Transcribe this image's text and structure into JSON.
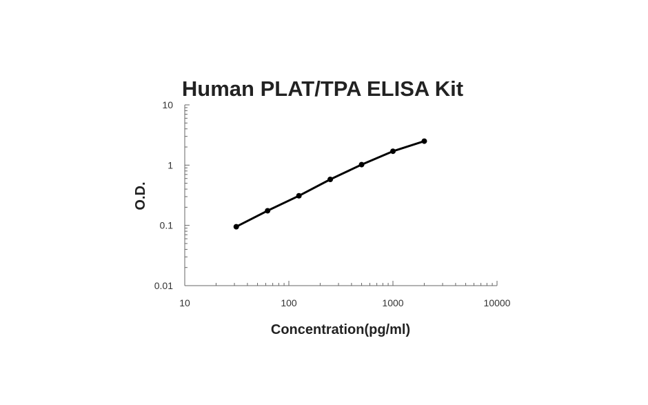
{
  "chart_data": {
    "type": "line",
    "title": "Human PLAT/TPA ELISA Kit",
    "xlabel": "Concentration(pg/ml)",
    "ylabel": "O.D.",
    "x_scale": "log",
    "y_scale": "log",
    "xlim": [
      10,
      10000
    ],
    "ylim": [
      0.01,
      10
    ],
    "x_ticks": [
      "10",
      "100",
      "1000",
      "10000"
    ],
    "y_ticks": [
      "0.01",
      "0.1",
      "1",
      "10"
    ],
    "grid": false,
    "legend": "none",
    "series": [
      {
        "x": [
          31.25,
          62.5,
          125,
          250,
          500,
          1000,
          2000
        ],
        "y": [
          0.095,
          0.175,
          0.31,
          0.58,
          1.02,
          1.7,
          2.5
        ]
      }
    ],
    "colors": {
      "line": "#000000",
      "axis": "#666666",
      "text": "#222222"
    }
  }
}
